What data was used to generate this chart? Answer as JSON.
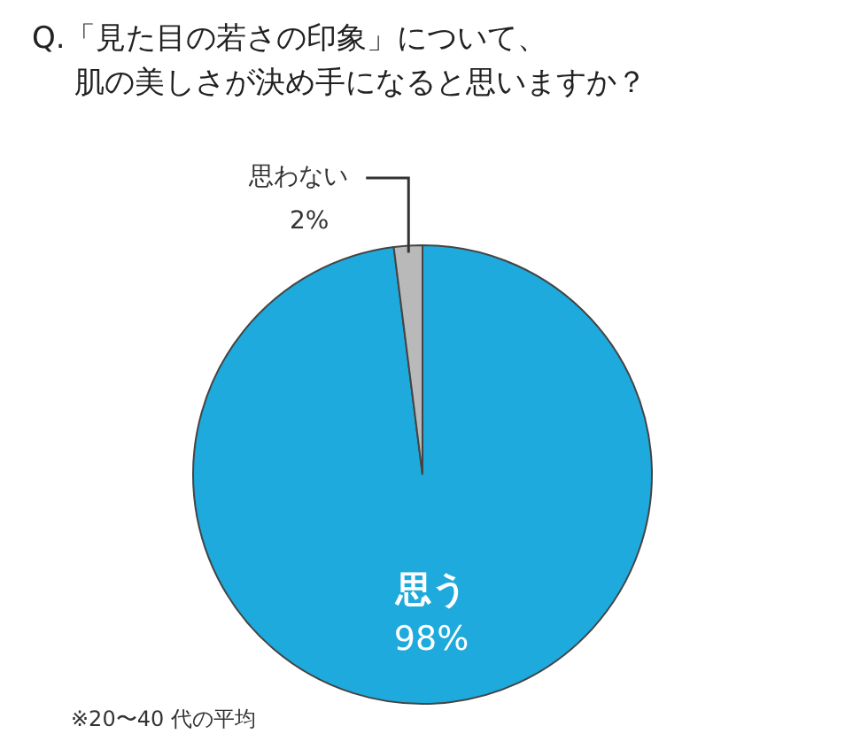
{
  "chart_data": {
    "type": "pie",
    "title": "Q.「見た目の若さの印象」について、",
    "subtitle": "肌の美しさが決め手になると思いますか？",
    "categories": [
      "思う",
      "思わない"
    ],
    "values": [
      98,
      2
    ],
    "colors": [
      "#1eaadc",
      "#b9b9b9"
    ],
    "value_labels": [
      "98%",
      "2%"
    ],
    "legend": false,
    "annotations": [
      "※20〜40 代の平均"
    ]
  }
}
